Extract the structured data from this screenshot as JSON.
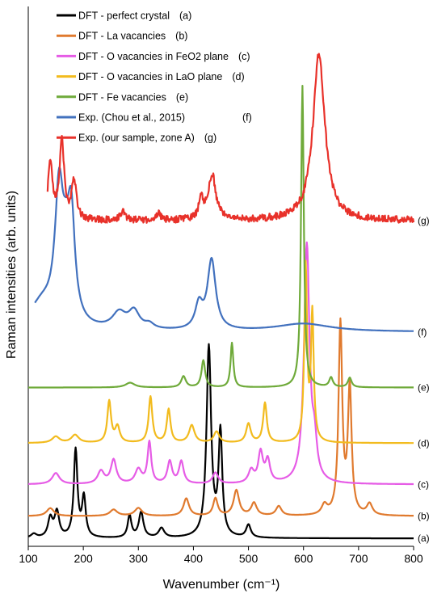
{
  "chart_data": {
    "type": "line",
    "xlabel": "Wavenumber (cm⁻¹)",
    "ylabel": "Raman intensities (arb. units)",
    "xlim": [
      100,
      800
    ],
    "x_ticks": [
      100,
      200,
      300,
      400,
      500,
      600,
      700,
      800
    ],
    "y_ticks_shown": false,
    "legend_position": "top-left",
    "series": [
      {
        "name": "DFT - perfect crystal",
        "legend_tag": "(a)",
        "label": "(a)",
        "color": "#000000",
        "baseline": 0,
        "noise": 0,
        "x_range": [
          100,
          800
        ],
        "peaks": [
          [
            110,
            0.25,
            6
          ],
          [
            140,
            1.2,
            5
          ],
          [
            152,
            1.6,
            5
          ],
          [
            186,
            5.5,
            4
          ],
          [
            201,
            2.5,
            4
          ],
          [
            284,
            1.4,
            4
          ],
          [
            305,
            1.6,
            5
          ],
          [
            342,
            0.6,
            6
          ],
          [
            428,
            12.0,
            5
          ],
          [
            449,
            6.5,
            4
          ],
          [
            500,
            0.8,
            5
          ]
        ]
      },
      {
        "name": "DFT - La vacancies",
        "legend_tag": "(b)",
        "label": "(b)",
        "color": "#E07A2E",
        "baseline": 1.4,
        "noise": 0,
        "x_range": [
          100,
          800
        ],
        "peaks": [
          [
            140,
            0.5,
            8
          ],
          [
            255,
            0.4,
            8
          ],
          [
            300,
            0.5,
            8
          ],
          [
            387,
            1.1,
            6
          ],
          [
            440,
            1.1,
            5
          ],
          [
            478,
            1.6,
            6
          ],
          [
            510,
            0.8,
            6
          ],
          [
            555,
            0.6,
            6
          ],
          [
            638,
            0.6,
            6
          ],
          [
            667,
            12.0,
            4
          ],
          [
            684,
            8.0,
            4
          ],
          [
            720,
            0.7,
            6
          ]
        ]
      },
      {
        "name": "DFT - O vacancies in FeO2 plane",
        "legend_tag": "(c)",
        "label": "(c)",
        "color": "#E65CE6",
        "baseline": 3.4,
        "noise": 0,
        "x_range": [
          100,
          800
        ],
        "peaks": [
          [
            150,
            0.7,
            8
          ],
          [
            232,
            0.8,
            7
          ],
          [
            255,
            1.5,
            6
          ],
          [
            300,
            0.9,
            7
          ],
          [
            320,
            2.6,
            4
          ],
          [
            357,
            1.4,
            5
          ],
          [
            378,
            1.4,
            5
          ],
          [
            440,
            0.7,
            6
          ],
          [
            505,
            0.8,
            6
          ],
          [
            522,
            1.9,
            5
          ],
          [
            535,
            1.4,
            5
          ],
          [
            606,
            15.0,
            6
          ],
          [
            620,
            2.0,
            5
          ]
        ]
      },
      {
        "name": "DFT - O vacancies in LaO plane",
        "legend_tag": "(d)",
        "label": "(d)",
        "color": "#F2BB1E",
        "baseline": 6.0,
        "noise": 0,
        "x_range": [
          100,
          800
        ],
        "peaks": [
          [
            150,
            0.4,
            8
          ],
          [
            185,
            0.5,
            8
          ],
          [
            247,
            2.6,
            4
          ],
          [
            262,
            1.0,
            5
          ],
          [
            322,
            2.9,
            4
          ],
          [
            355,
            2.1,
            4
          ],
          [
            397,
            1.1,
            6
          ],
          [
            442,
            0.7,
            6
          ],
          [
            500,
            1.2,
            5
          ],
          [
            530,
            2.5,
            4
          ],
          [
            604,
            11.0,
            3
          ],
          [
            616,
            8.0,
            3
          ]
        ]
      },
      {
        "name": "DFT - Fe vacancies",
        "legend_tag": "(e)",
        "label": "(e)",
        "color": "#6FAA3A",
        "baseline": 9.5,
        "noise": 0,
        "x_range": [
          100,
          800
        ],
        "peaks": [
          [
            285,
            0.3,
            10
          ],
          [
            382,
            0.7,
            5
          ],
          [
            418,
            1.7,
            4
          ],
          [
            470,
            2.8,
            3
          ],
          [
            598,
            19.0,
            3
          ],
          [
            650,
            0.6,
            4
          ],
          [
            684,
            0.6,
            4
          ]
        ]
      },
      {
        "name": "Exp. (Chou et al., 2015)",
        "legend_tag": "(f)",
        "label": "(f)",
        "color": "#4271BE",
        "baseline": 13.0,
        "noise": 0,
        "x_range": [
          112,
          800
        ],
        "peaks": [
          [
            125,
            1.6,
            30
          ],
          [
            156,
            8.0,
            9
          ],
          [
            178,
            6.5,
            8
          ],
          [
            168,
            2.5,
            8
          ],
          [
            265,
            1.0,
            15
          ],
          [
            292,
            1.1,
            12
          ],
          [
            320,
            0.3,
            10
          ],
          [
            410,
            1.5,
            8
          ],
          [
            433,
            4.4,
            9
          ],
          [
            600,
            0.5,
            60
          ]
        ]
      },
      {
        "name": "Exp. (our sample, zone A)",
        "legend_tag": "(g)",
        "label": "(g)",
        "color": "#E8312A",
        "baseline": 20.0,
        "noise": 0.22,
        "x_range": [
          135,
          800
        ],
        "peaks": [
          [
            140,
            3.5,
            5
          ],
          [
            161,
            5.0,
            5
          ],
          [
            183,
            2.5,
            5
          ],
          [
            272,
            0.5,
            6
          ],
          [
            337,
            0.4,
            5
          ],
          [
            414,
            1.2,
            5
          ],
          [
            434,
            2.9,
            8
          ],
          [
            628,
            10.5,
            13
          ]
        ]
      }
    ]
  }
}
